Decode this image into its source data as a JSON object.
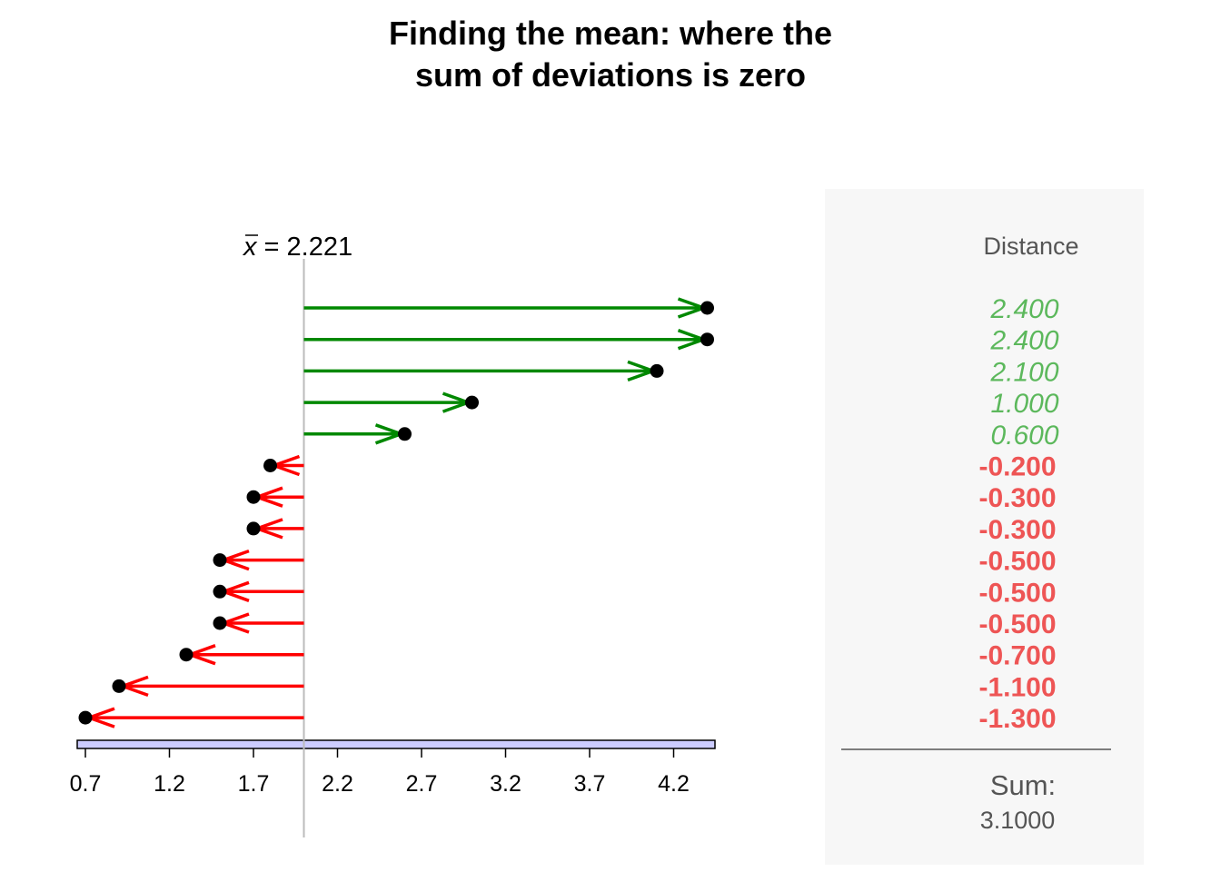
{
  "title_lines": [
    "Finding the mean: where the",
    "sum of deviations is zero"
  ],
  "chart_data": {
    "type": "dot-arrow",
    "mean_symbol": "x",
    "mean_label": "= 2.221",
    "mean_value": 2.221,
    "reference_x": 2.0,
    "x_ticks": [
      "0.7",
      "1.2",
      "1.7",
      "2.2",
      "2.7",
      "3.2",
      "3.7",
      "4.2"
    ],
    "xlim": [
      0.7,
      4.5
    ],
    "points": [
      4.4,
      4.4,
      4.1,
      3.0,
      2.6,
      1.8,
      1.7,
      1.7,
      1.5,
      1.5,
      1.5,
      1.3,
      0.9,
      0.7
    ],
    "positive_color": "#008800",
    "negative_color": "#ff0000"
  },
  "panel": {
    "header": "Distance",
    "distances": [
      "2.400",
      "2.400",
      "2.100",
      "1.000",
      "0.600",
      "-0.200",
      "-0.300",
      "-0.300",
      "-0.500",
      "-0.500",
      "-0.500",
      "-0.700",
      "-1.100",
      "-1.300"
    ],
    "sum_label": "Sum:",
    "sum_value": "3.1000",
    "positive_text_color": "#5cb85c",
    "negative_text_color": "#ee5555"
  }
}
